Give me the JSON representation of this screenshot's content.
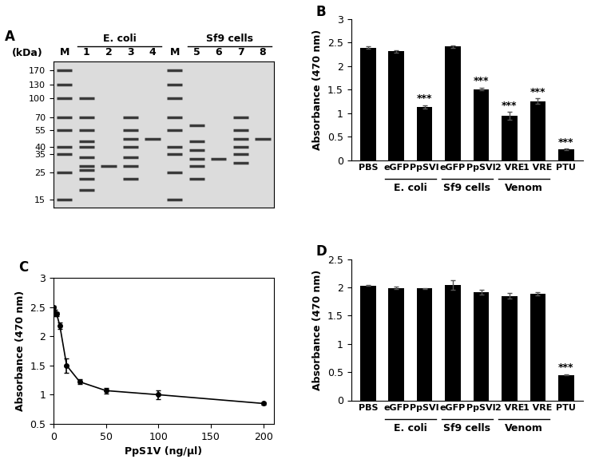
{
  "chart_data": [
    {
      "type": "gel",
      "panel": "A",
      "y_label": "(kDa)",
      "categories": [
        "M",
        "1",
        "2",
        "3",
        "4",
        "M",
        "5",
        "6",
        "7",
        "8"
      ],
      "groups": [
        null,
        "E. coli",
        "E. coli",
        "E. coli",
        "E. coli",
        null,
        "Sf9 cells",
        "Sf9 cells",
        "Sf9 cells",
        "Sf9 cells"
      ],
      "bands": [
        [
          170,
          130,
          100,
          70,
          55,
          40,
          35,
          25,
          15
        ],
        [
          100,
          70,
          55,
          45,
          40,
          33,
          28,
          26,
          22,
          18
        ],
        [
          28
        ],
        [
          70,
          55,
          47,
          40,
          33,
          28,
          22
        ],
        [
          47
        ],
        [
          170,
          130,
          100,
          70,
          55,
          40,
          35,
          25,
          15
        ],
        [
          60,
          45,
          38,
          32,
          28,
          22
        ],
        [
          32
        ],
        [
          70,
          55,
          47,
          40,
          35,
          30
        ],
        [
          47
        ]
      ],
      "color": "#3a3a3a",
      "log": "y",
      "ylim": [
        13,
        200
      ],
      "yticks": [
        15,
        25,
        35,
        40,
        55,
        70,
        100,
        130,
        170
      ]
    },
    {
      "type": "bar",
      "panel": "B",
      "y_label": "Absorbance (470 nm)",
      "categories": [
        "PBS",
        "eGFP",
        "PpSVI",
        "eGFP",
        "PpSVI",
        "2 VRE",
        "1 VRE",
        "PTU"
      ],
      "groups": [
        null,
        "E. coli",
        "E. coli",
        "Sf9 cells",
        "Sf9 cells",
        "Venom",
        "Venom",
        null
      ],
      "values": [
        2.39,
        2.31,
        1.13,
        2.41,
        1.51,
        0.94,
        1.25,
        0.23
      ],
      "errors": [
        0.03,
        0.03,
        0.03,
        0.03,
        0.03,
        0.08,
        0.06,
        0.01
      ],
      "annotations": [
        null,
        null,
        "***",
        null,
        "***",
        "***",
        "***",
        "***"
      ],
      "color": "#000000",
      "ylim": [
        0,
        3
      ],
      "yticks": [
        0,
        0.5,
        1,
        1.5,
        2,
        2.5,
        3
      ]
    },
    {
      "type": "line",
      "panel": "C",
      "x_label": "PpS1V (ng/μl)",
      "y_label": "Absorbance (470 nm)",
      "x": [
        0,
        1.5,
        3,
        6,
        12.5,
        25,
        50,
        100,
        200
      ],
      "values": [
        2.49,
        2.4,
        2.38,
        2.18,
        1.5,
        1.22,
        1.07,
        1.0,
        0.85
      ],
      "errors": [
        0.03,
        0.05,
        0.03,
        0.05,
        0.12,
        0.04,
        0.05,
        0.07,
        0.02
      ],
      "color": "#000000",
      "marker": "circle",
      "xlim": [
        0,
        210
      ],
      "xticks": [
        0,
        50,
        100,
        150,
        200
      ],
      "ylim": [
        0.5,
        3
      ],
      "yticks": [
        0.5,
        1,
        1.5,
        2,
        2.5,
        3
      ]
    },
    {
      "type": "bar",
      "panel": "D",
      "y_label": "Absorbance (470 nm)",
      "categories": [
        "PBS",
        "eGFP",
        "PpSVI",
        "eGFP",
        "PpSVI",
        "2 VRE",
        "1 VRE",
        "PTU"
      ],
      "groups": [
        null,
        "E. coli",
        "E. coli",
        "Sf9 cells",
        "Sf9 cells",
        "Venom",
        "Venom",
        null
      ],
      "values": [
        2.03,
        1.99,
        1.98,
        2.04,
        1.91,
        1.85,
        1.89,
        0.45
      ],
      "errors": [
        0.01,
        0.02,
        0.01,
        0.09,
        0.04,
        0.05,
        0.03,
        0.01
      ],
      "annotations": [
        null,
        null,
        null,
        null,
        null,
        null,
        null,
        "***"
      ],
      "color": "#000000",
      "ylim": [
        0,
        2.5
      ],
      "yticks": [
        0,
        0.5,
        1,
        1.5,
        2,
        2.5
      ]
    }
  ]
}
